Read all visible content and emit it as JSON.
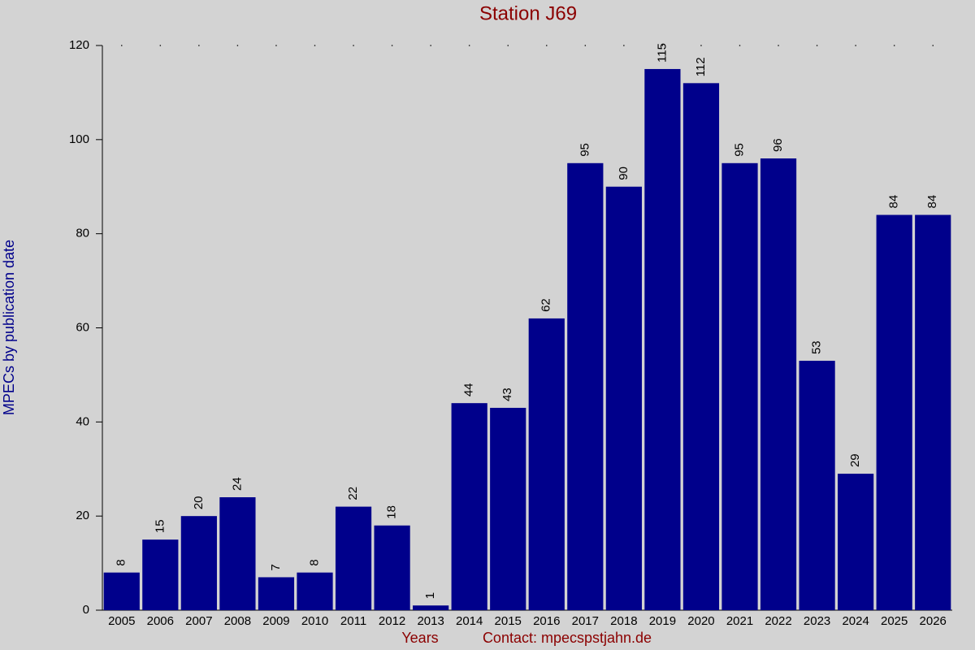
{
  "chart_data": {
    "type": "bar",
    "title": "Station J69",
    "x_label": "Years",
    "contact": "Contact: mpecspstjahn.de",
    "y_label": "MPECs by publication date",
    "categories": [
      "2005",
      "2006",
      "2007",
      "2008",
      "2009",
      "2010",
      "2011",
      "2012",
      "2013",
      "2014",
      "2015",
      "2016",
      "2017",
      "2018",
      "2019",
      "2020",
      "2021",
      "2022",
      "2023",
      "2024",
      "2025",
      "2026"
    ],
    "values": [
      8,
      15,
      20,
      24,
      7,
      8,
      22,
      18,
      1,
      44,
      43,
      62,
      95,
      90,
      115,
      112,
      95,
      96,
      53,
      29,
      84,
      84
    ],
    "color": "#00008b",
    "ylim": [
      0,
      120
    ],
    "yticks": [
      0,
      20,
      40,
      60,
      80,
      100,
      120
    ],
    "grid": false
  }
}
